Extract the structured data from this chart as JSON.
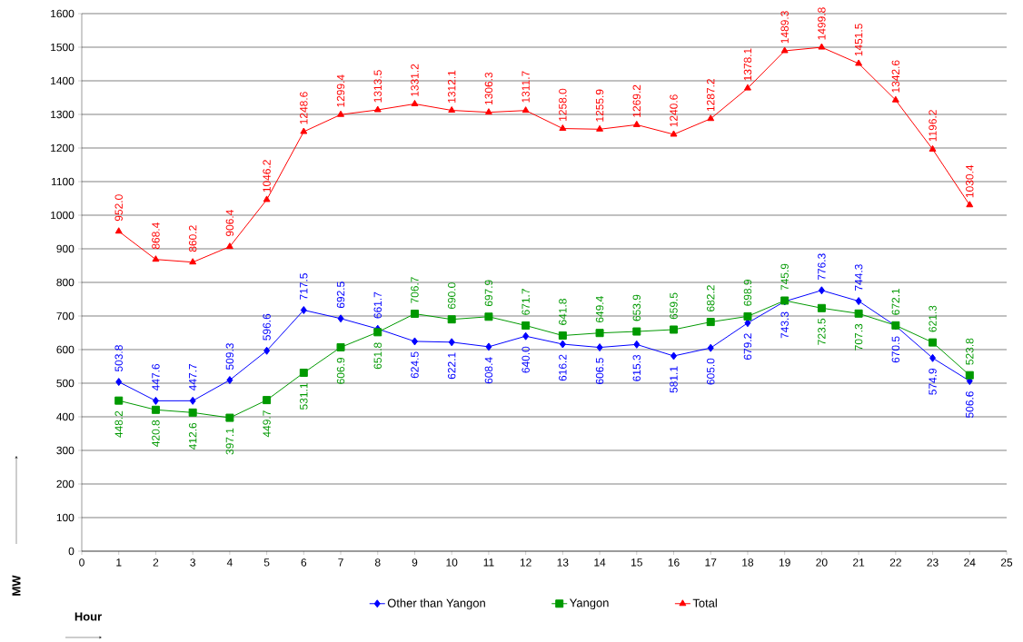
{
  "chart_data": {
    "type": "line",
    "xlabel": "Hour",
    "ylabel": "MW",
    "x": [
      1,
      2,
      3,
      4,
      5,
      6,
      7,
      8,
      9,
      10,
      11,
      12,
      13,
      14,
      15,
      16,
      17,
      18,
      19,
      20,
      21,
      22,
      23,
      24
    ],
    "series": [
      {
        "name": "Other than Yangon",
        "color": "#0000ff",
        "marker": "diamond",
        "values": [
          503.8,
          447.6,
          447.7,
          509.3,
          596.6,
          717.5,
          692.5,
          661.7,
          624.5,
          622.1,
          608.4,
          640.0,
          616.2,
          606.5,
          615.3,
          581.1,
          605.0,
          679.2,
          743.3,
          776.3,
          744.3,
          670.5,
          574.9,
          506.6
        ],
        "value_labels": [
          "503.8",
          "447.6",
          "447.7",
          "509.3",
          "596.6",
          "717.5",
          "692.5",
          "661.7",
          "624.5",
          "622.1",
          "608.4",
          "640.0",
          "616.2",
          "606.5",
          "615.3",
          "581.1",
          "605.0",
          "679.2",
          "743.3",
          "776.3",
          "744.3",
          "670.5",
          "574.9",
          "506.6"
        ]
      },
      {
        "name": "Yangon",
        "color": "#009900",
        "marker": "square",
        "values": [
          448.2,
          420.8,
          412.6,
          397.1,
          449.7,
          531.1,
          606.9,
          651.8,
          706.7,
          690.0,
          697.9,
          671.7,
          641.8,
          649.4,
          653.9,
          659.5,
          682.2,
          698.9,
          745.9,
          723.5,
          707.3,
          672.1,
          621.3,
          523.8
        ],
        "value_labels": [
          "448.2",
          "420.8",
          "412.6",
          "397.1",
          "449.7",
          "531.1",
          "606.9",
          "651.8",
          "706.7",
          "690.0",
          "697.9",
          "671.7",
          "641.8",
          "649.4",
          "653.9",
          "659.5",
          "682.2",
          "698.9",
          "745.9",
          "723.5",
          "707.3",
          "672.1",
          "621.3",
          "523.8"
        ]
      },
      {
        "name": "Total",
        "color": "#ff0000",
        "marker": "triangle",
        "values": [
          952.0,
          868.4,
          860.2,
          906.4,
          1046.2,
          1248.6,
          1299.4,
          1313.5,
          1331.2,
          1312.1,
          1306.3,
          1311.7,
          1258.0,
          1255.9,
          1269.2,
          1240.6,
          1287.2,
          1378.1,
          1489.3,
          1499.8,
          1451.5,
          1342.6,
          1196.2,
          1030.4
        ],
        "value_labels": [
          "952.0",
          "868.4",
          "860.2",
          "906.4",
          "1046.2",
          "1248.6",
          "1299.4",
          "1313.5",
          "1331.2",
          "1312.1",
          "1306.3",
          "1311.7",
          "1258.0",
          "1255.9",
          "1269.2",
          "1240.6",
          "1287.2",
          "1378.1",
          "1489.3",
          "1499.8",
          "1451.5",
          "1342.6",
          "1196.2",
          "1030.4"
        ]
      }
    ],
    "xlim": [
      0,
      25
    ],
    "xticks": [
      0,
      1,
      2,
      3,
      4,
      5,
      6,
      7,
      8,
      9,
      10,
      11,
      12,
      13,
      14,
      15,
      16,
      17,
      18,
      19,
      20,
      21,
      22,
      23,
      24,
      25
    ],
    "ylim": [
      0,
      1600
    ],
    "yticks": [
      0,
      100,
      200,
      300,
      400,
      500,
      600,
      700,
      800,
      900,
      1000,
      1100,
      1200,
      1300,
      1400,
      1500,
      1600
    ],
    "grid": "y",
    "legend": "bottom",
    "line_style": "solid"
  }
}
